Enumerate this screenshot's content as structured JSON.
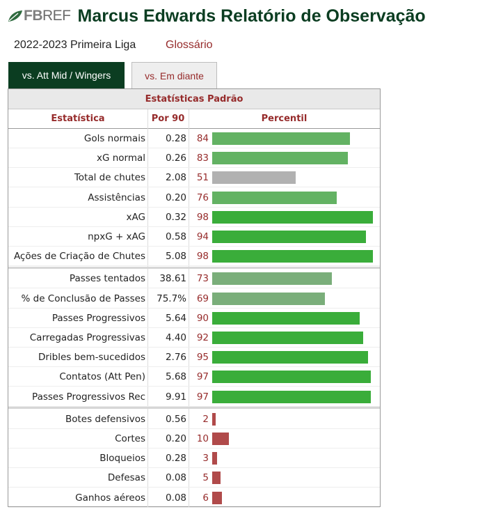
{
  "header": {
    "logo_fb": "FB",
    "logo_ref": "REF",
    "title": "Marcus Edwards Relatório de Observação"
  },
  "meta": {
    "season": "2022-2023 Primeira Liga",
    "glossary": "Glossário"
  },
  "tabs": [
    {
      "label": "vs. Att Mid / Wingers",
      "active": true
    },
    {
      "label": "vs. Em diante",
      "active": false
    }
  ],
  "table": {
    "caption": "Estatísticas Padrão",
    "columns": [
      "Estatística",
      "Por 90",
      "Percentil"
    ]
  },
  "colors": {
    "brand_green": "#0b3d21",
    "link_red": "#962b2b",
    "bar_green_high": "#3aad3a",
    "bar_green_mid": "#63b263",
    "bar_green_low": "#7aae7a",
    "bar_gray": "#b1b1b1",
    "bar_red": "#b04a4a"
  },
  "chart_data": {
    "type": "bar",
    "orientation": "horizontal",
    "xlim": [
      0,
      99
    ],
    "groups": [
      {
        "rows": [
          {
            "stat": "Gols normais",
            "per90": "0.28",
            "percentile": 84
          },
          {
            "stat": "xG normal",
            "per90": "0.26",
            "percentile": 83
          },
          {
            "stat": "Total de chutes",
            "per90": "2.08",
            "percentile": 51
          },
          {
            "stat": "Assistências",
            "per90": "0.20",
            "percentile": 76
          },
          {
            "stat": "xAG",
            "per90": "0.32",
            "percentile": 98
          },
          {
            "stat": "npxG + xAG",
            "per90": "0.58",
            "percentile": 94
          },
          {
            "stat": "Ações de Criação de Chutes",
            "per90": "5.08",
            "percentile": 98
          }
        ]
      },
      {
        "rows": [
          {
            "stat": "Passes tentados",
            "per90": "38.61",
            "percentile": 73
          },
          {
            "stat": "% de Conclusão de Passes",
            "per90": "75.7%",
            "percentile": 69
          },
          {
            "stat": "Passes Progressivos",
            "per90": "5.64",
            "percentile": 90
          },
          {
            "stat": "Carregadas Progressivas",
            "per90": "4.40",
            "percentile": 92
          },
          {
            "stat": "Dribles bem-sucedidos",
            "per90": "2.76",
            "percentile": 95
          },
          {
            "stat": "Contatos (Att Pen)",
            "per90": "5.68",
            "percentile": 97
          },
          {
            "stat": "Passes Progressivos Rec",
            "per90": "9.91",
            "percentile": 97
          }
        ]
      },
      {
        "rows": [
          {
            "stat": "Botes defensivos",
            "per90": "0.56",
            "percentile": 2
          },
          {
            "stat": "Cortes",
            "per90": "0.20",
            "percentile": 10
          },
          {
            "stat": "Bloqueios",
            "per90": "0.28",
            "percentile": 3
          },
          {
            "stat": "Defesas",
            "per90": "0.08",
            "percentile": 5
          },
          {
            "stat": "Ganhos aéreos",
            "per90": "0.08",
            "percentile": 6
          }
        ]
      }
    ]
  }
}
